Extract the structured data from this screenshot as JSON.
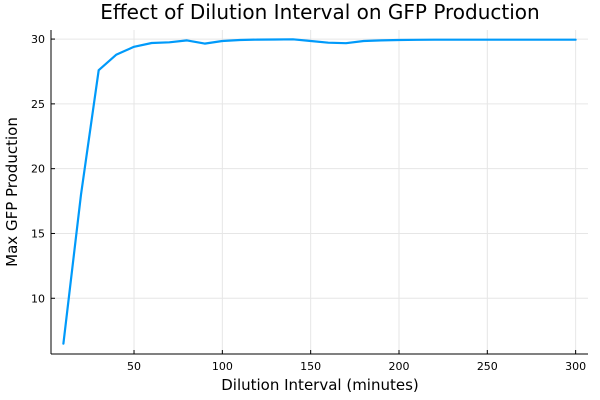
{
  "chart_data": {
    "type": "line",
    "title": "Effect of Dilution Interval on GFP Production",
    "xlabel": "Dilution Interval (minutes)",
    "ylabel": "Max GFP Production",
    "xlim": [
      3,
      307
    ],
    "ylim": [
      5.7,
      30.7
    ],
    "xticks": [
      50,
      100,
      150,
      200,
      250,
      300
    ],
    "yticks": [
      10,
      15,
      20,
      25,
      30
    ],
    "grid": true,
    "legend": "none",
    "series": [
      {
        "color": "#009AFA",
        "x": [
          10,
          20,
          30,
          40,
          50,
          60,
          70,
          80,
          90,
          100,
          110,
          120,
          130,
          140,
          150,
          160,
          170,
          180,
          190,
          200,
          210,
          220,
          230,
          240,
          250,
          260,
          270,
          280,
          290,
          300
        ],
        "y": [
          6.5,
          18.0,
          27.6,
          28.8,
          29.4,
          29.7,
          29.75,
          29.9,
          29.65,
          29.85,
          29.93,
          29.96,
          29.97,
          29.98,
          29.85,
          29.72,
          29.68,
          29.85,
          29.9,
          29.93,
          29.94,
          29.95,
          29.95,
          29.95,
          29.95,
          29.95,
          29.95,
          29.95,
          29.95,
          29.95
        ]
      }
    ]
  }
}
